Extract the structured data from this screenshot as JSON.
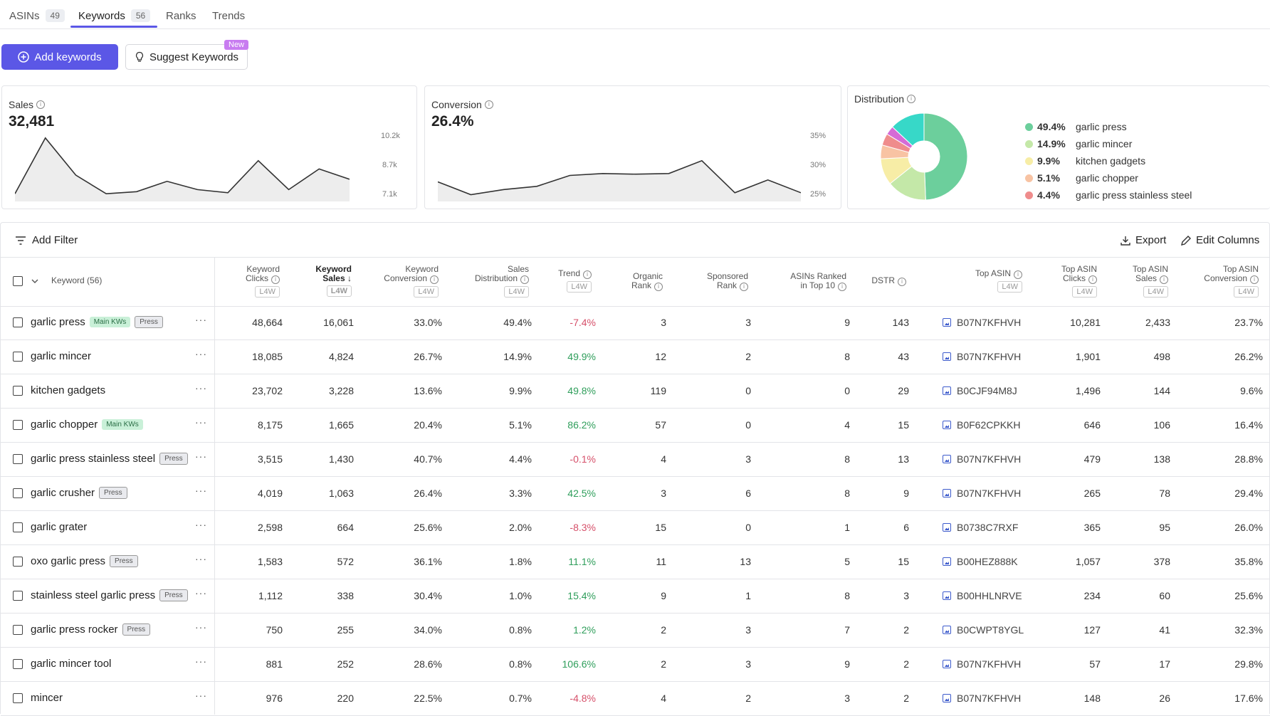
{
  "tabs": [
    {
      "label": "ASINs",
      "count": "49"
    },
    {
      "label": "Keywords",
      "count": "56"
    },
    {
      "label": "Ranks",
      "count": ""
    },
    {
      "label": "Trends",
      "count": ""
    }
  ],
  "actions": {
    "add_keywords": "Add keywords",
    "suggest_keywords": "Suggest Keywords",
    "new_badge": "New"
  },
  "cards": {
    "sales": {
      "label": "Sales",
      "value": "32,481",
      "axis": [
        "10.2k",
        "8.7k",
        "7.1k"
      ],
      "series": [
        7300,
        10000,
        8200,
        7300,
        7400,
        7900,
        7500,
        7350,
        8900,
        7500,
        8500,
        8000
      ]
    },
    "conversion": {
      "label": "Conversion",
      "value": "26.4%",
      "axis": [
        "35%",
        "30%",
        "25%"
      ],
      "series": [
        27.5,
        25.5,
        26.3,
        26.8,
        28.5,
        28.8,
        28.7,
        28.8,
        30.8,
        25.8,
        27.8,
        25.8
      ]
    },
    "distribution": {
      "label": "Distribution"
    }
  },
  "distribution_legend": [
    {
      "pct": "49.4%",
      "name": "garlic press",
      "color": "#6ccf9c"
    },
    {
      "pct": "14.9%",
      "name": "garlic mincer",
      "color": "#c4e8a8"
    },
    {
      "pct": "9.9%",
      "name": "kitchen gadgets",
      "color": "#f7eda6"
    },
    {
      "pct": "5.1%",
      "name": "garlic chopper",
      "color": "#f8c3a3"
    },
    {
      "pct": "4.4%",
      "name": "garlic press stainless steel",
      "color": "#ef8c8c"
    }
  ],
  "donut_extra": [
    {
      "value": 3.3,
      "color": "#d56bd6"
    },
    {
      "value": 13.0,
      "color": "#37d8c8"
    }
  ],
  "toolbar": {
    "add_filter": "Add Filter",
    "export": "Export",
    "edit_columns": "Edit Columns"
  },
  "headers": {
    "keyword": "Keyword (56)",
    "kw_clicks": [
      "Keyword",
      "Clicks"
    ],
    "kw_sales": [
      "Keyword",
      "Sales"
    ],
    "kw_conv": [
      "Keyword",
      "Conversion"
    ],
    "sales_dist": [
      "Sales",
      "Distribution"
    ],
    "trend": "Trend",
    "organic": [
      "Organic",
      "Rank"
    ],
    "sponsored": [
      "Sponsored",
      "Rank"
    ],
    "asins_ranked": [
      "ASINs Ranked",
      "in Top 10"
    ],
    "dstr": "DSTR",
    "top_asin": "Top ASIN",
    "top_asin_clicks": [
      "Top ASIN",
      "Clicks"
    ],
    "top_asin_sales": [
      "Top ASIN",
      "Sales"
    ],
    "top_asin_conv": [
      "Top ASIN",
      "Conversion"
    ],
    "l4w": "L4W"
  },
  "rows": [
    {
      "keyword": "garlic press",
      "tags": [
        "Main KWs",
        "Press"
      ],
      "clicks": "48,664",
      "sales": "16,061",
      "conv": "33.0%",
      "dist": "49.4%",
      "trend": "-7.4%",
      "organic": "3",
      "sponsored": "3",
      "asins": "9",
      "dstr": "143",
      "asin": "B07N7KFHVH",
      "a_clicks": "10,281",
      "a_sales": "2,433",
      "a_conv": "23.7%"
    },
    {
      "keyword": "garlic mincer",
      "tags": [],
      "clicks": "18,085",
      "sales": "4,824",
      "conv": "26.7%",
      "dist": "14.9%",
      "trend": "49.9%",
      "organic": "12",
      "sponsored": "2",
      "asins": "8",
      "dstr": "43",
      "asin": "B07N7KFHVH",
      "a_clicks": "1,901",
      "a_sales": "498",
      "a_conv": "26.2%"
    },
    {
      "keyword": "kitchen gadgets",
      "tags": [],
      "clicks": "23,702",
      "sales": "3,228",
      "conv": "13.6%",
      "dist": "9.9%",
      "trend": "49.8%",
      "organic": "119",
      "sponsored": "0",
      "asins": "0",
      "dstr": "29",
      "asin": "B0CJF94M8J",
      "a_clicks": "1,496",
      "a_sales": "144",
      "a_conv": "9.6%"
    },
    {
      "keyword": "garlic chopper",
      "tags": [
        "Main KWs"
      ],
      "clicks": "8,175",
      "sales": "1,665",
      "conv": "20.4%",
      "dist": "5.1%",
      "trend": "86.2%",
      "organic": "57",
      "sponsored": "0",
      "asins": "4",
      "dstr": "15",
      "asin": "B0F62CPKKH",
      "a_clicks": "646",
      "a_sales": "106",
      "a_conv": "16.4%"
    },
    {
      "keyword": "garlic press stainless steel",
      "tags": [
        "Press"
      ],
      "clicks": "3,515",
      "sales": "1,430",
      "conv": "40.7%",
      "dist": "4.4%",
      "trend": "-0.1%",
      "organic": "4",
      "sponsored": "3",
      "asins": "8",
      "dstr": "13",
      "asin": "B07N7KFHVH",
      "a_clicks": "479",
      "a_sales": "138",
      "a_conv": "28.8%"
    },
    {
      "keyword": "garlic crusher",
      "tags": [
        "Press"
      ],
      "clicks": "4,019",
      "sales": "1,063",
      "conv": "26.4%",
      "dist": "3.3%",
      "trend": "42.5%",
      "organic": "3",
      "sponsored": "6",
      "asins": "8",
      "dstr": "9",
      "asin": "B07N7KFHVH",
      "a_clicks": "265",
      "a_sales": "78",
      "a_conv": "29.4%"
    },
    {
      "keyword": "garlic grater",
      "tags": [],
      "clicks": "2,598",
      "sales": "664",
      "conv": "25.6%",
      "dist": "2.0%",
      "trend": "-8.3%",
      "organic": "15",
      "sponsored": "0",
      "asins": "1",
      "dstr": "6",
      "asin": "B0738C7RXF",
      "a_clicks": "365",
      "a_sales": "95",
      "a_conv": "26.0%"
    },
    {
      "keyword": "oxo garlic press",
      "tags": [
        "Press"
      ],
      "clicks": "1,583",
      "sales": "572",
      "conv": "36.1%",
      "dist": "1.8%",
      "trend": "11.1%",
      "organic": "11",
      "sponsored": "13",
      "asins": "5",
      "dstr": "15",
      "asin": "B00HEZ888K",
      "a_clicks": "1,057",
      "a_sales": "378",
      "a_conv": "35.8%"
    },
    {
      "keyword": "stainless steel garlic press",
      "tags": [
        "Press"
      ],
      "clicks": "1,112",
      "sales": "338",
      "conv": "30.4%",
      "dist": "1.0%",
      "trend": "15.4%",
      "organic": "9",
      "sponsored": "1",
      "asins": "8",
      "dstr": "3",
      "asin": "B00HHLNRVE",
      "a_clicks": "234",
      "a_sales": "60",
      "a_conv": "25.6%"
    },
    {
      "keyword": "garlic press rocker",
      "tags": [
        "Press"
      ],
      "clicks": "750",
      "sales": "255",
      "conv": "34.0%",
      "dist": "0.8%",
      "trend": "1.2%",
      "organic": "2",
      "sponsored": "3",
      "asins": "7",
      "dstr": "2",
      "asin": "B0CWPT8YGL",
      "a_clicks": "127",
      "a_sales": "41",
      "a_conv": "32.3%"
    },
    {
      "keyword": "garlic mincer tool",
      "tags": [],
      "clicks": "881",
      "sales": "252",
      "conv": "28.6%",
      "dist": "0.8%",
      "trend": "106.6%",
      "organic": "2",
      "sponsored": "3",
      "asins": "9",
      "dstr": "2",
      "asin": "B07N7KFHVH",
      "a_clicks": "57",
      "a_sales": "17",
      "a_conv": "29.8%"
    },
    {
      "keyword": "mincer",
      "tags": [],
      "clicks": "976",
      "sales": "220",
      "conv": "22.5%",
      "dist": "0.7%",
      "trend": "-4.8%",
      "organic": "4",
      "sponsored": "2",
      "asins": "3",
      "dstr": "2",
      "asin": "B07N7KFHVH",
      "a_clicks": "148",
      "a_sales": "26",
      "a_conv": "17.6%"
    }
  ],
  "colors": {
    "accent": "#5b57e6",
    "trend_up": "#2f9e5b",
    "trend_down": "#d6506a"
  }
}
